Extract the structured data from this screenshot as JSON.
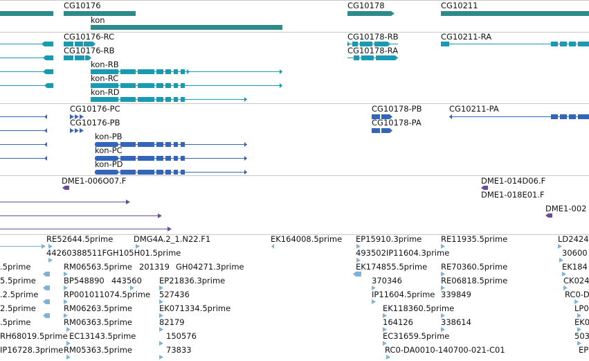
{
  "colors": {
    "gene": "#2e8b8b",
    "mrna": "#1a9ab0",
    "protein": "#3366bb",
    "clone": "#6a4c9c",
    "est": "#7fb3d6",
    "separator": "#c8c8c8"
  },
  "gene_track": {
    "labels": [
      "CG10176",
      "kon",
      "CG10178",
      "CG10211"
    ]
  },
  "mrna_track": {
    "labels": [
      "CG10176-RC",
      "CG10176-RB",
      "kon-RB",
      "kon-RC",
      "kon-RD",
      "CG10178-RB",
      "CG10178-RA",
      "CG10211-RA"
    ]
  },
  "protein_track": {
    "labels": [
      "CG10176-PC",
      "CG10176-PB",
      "kon-PB",
      "kon-PC",
      "kon-PD",
      "CG10178-PB",
      "CG10178-PA",
      "CG10211-PA"
    ]
  },
  "clone_track": {
    "labels": [
      "DME1-006O07.F",
      "DME1-014D06.F",
      "DME1-018E01.F",
      "DME1-002"
    ]
  },
  "est_track": {
    "labels": [
      "RE52644.5prime",
      "DMG4A.2_1.N22.F1",
      "EK164008.5prime",
      "EP15910.3prime",
      "RE11935.5prime",
      "LD2424",
      "44260388511FGH105H01.5prime",
      "493502IP11604.3prime",
      "30600",
      ".5prime",
      "RM06563.5prime",
      "201319",
      "GH04271.3prime",
      "EK174855.5prime",
      "RE70360.5prime",
      "EK184",
      "5.5prime",
      "BP548890",
      "443560",
      "EP21836.3prime",
      "370346",
      "RE06818.5prime",
      "CK024",
      ".2.5prime",
      "RP001011074.5prime",
      "527436",
      "IP11604.5prime",
      "339849",
      "RC0-D",
      "2.5prime",
      "RM06263.5prime",
      "EK071334.5prime",
      "EK118360.5prime",
      "LP0",
      ".5prime",
      "RM06363.5prime",
      "82179",
      "164126",
      "338614",
      "EK0",
      "RH68019.5prime",
      "EC13143.5prime",
      "150576",
      "EC31659.5prime",
      "503",
      "IP16728.3prime",
      "RM05363.5prime",
      "73833",
      "RC0-DA0010-140700-021-C01",
      "EP"
    ]
  }
}
